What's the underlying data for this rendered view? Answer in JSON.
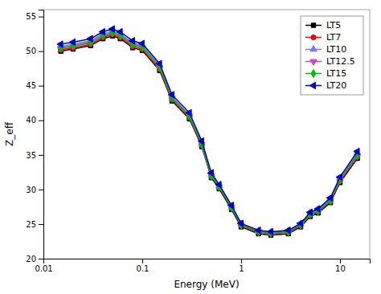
{
  "chart_data": {
    "type": "line",
    "xlabel": "Energy (MeV)",
    "ylabel": "Z_eff",
    "log": "x",
    "grid": false,
    "legend": "upper right",
    "xlim": [
      0.01,
      20
    ],
    "ylim": [
      20,
      56
    ],
    "xticks": [
      0.01,
      0.1,
      1,
      10
    ],
    "yticks": [
      20,
      25,
      30,
      35,
      40,
      45,
      50,
      55
    ],
    "x": [
      0.015,
      0.02,
      0.03,
      0.04,
      0.05,
      0.06,
      0.08,
      0.1,
      0.15,
      0.2,
      0.3,
      0.4,
      0.5,
      0.6,
      0.8,
      1.0,
      1.5,
      2.0,
      3.0,
      4.0,
      5.0,
      6.0,
      8.0,
      10.0,
      15.0
    ],
    "series": [
      {
        "name": "LT5",
        "color": "#000000",
        "marker": "square",
        "values": [
          50.0,
          50.3,
          50.8,
          51.8,
          52.2,
          51.8,
          50.5,
          50.1,
          47.2,
          42.8,
          40.2,
          36.2,
          31.7,
          30.1,
          27.1,
          24.6,
          23.6,
          23.4,
          23.6,
          24.6,
          26.1,
          26.6,
          28.1,
          31.0,
          34.5
        ]
      },
      {
        "name": "LT7",
        "color": "#ff0000",
        "marker": "circle",
        "values": [
          50.2,
          50.5,
          51.0,
          52.0,
          52.4,
          52.0,
          50.7,
          50.3,
          47.4,
          43.0,
          40.4,
          36.4,
          31.9,
          30.3,
          27.3,
          24.8,
          23.8,
          23.6,
          23.8,
          24.8,
          26.3,
          26.8,
          28.3,
          31.2,
          34.7
        ]
      },
      {
        "name": "LT10",
        "color": "#7777ff",
        "marker": "triangle-up",
        "values": [
          50.7,
          51.0,
          51.5,
          52.5,
          52.9,
          52.5,
          51.2,
          50.8,
          47.9,
          43.4,
          40.8,
          36.7,
          32.2,
          30.5,
          27.5,
          25.0,
          24.0,
          23.8,
          24.0,
          25.0,
          26.6,
          27.1,
          28.6,
          31.6,
          35.2
        ]
      },
      {
        "name": "LT12.5",
        "color": "#cc44cc",
        "marker": "triangle-down",
        "values": [
          50.4,
          50.7,
          51.2,
          52.2,
          52.6,
          52.2,
          50.9,
          50.5,
          47.6,
          43.2,
          40.6,
          36.5,
          32.0,
          30.4,
          27.4,
          24.9,
          23.9,
          23.7,
          23.9,
          24.9,
          26.4,
          26.9,
          28.4,
          31.4,
          34.9
        ]
      },
      {
        "name": "LT15",
        "color": "#00bb00",
        "marker": "diamond",
        "values": [
          50.5,
          50.8,
          51.3,
          52.3,
          52.7,
          52.3,
          51.0,
          50.6,
          47.7,
          43.2,
          40.6,
          36.5,
          32.0,
          30.4,
          27.4,
          24.9,
          23.9,
          23.7,
          23.9,
          24.9,
          26.4,
          26.9,
          28.4,
          31.4,
          35.0
        ]
      },
      {
        "name": "LT20",
        "color": "#0000cc",
        "marker": "triangle-left",
        "values": [
          51.0,
          51.3,
          51.8,
          52.8,
          53.2,
          52.8,
          51.5,
          51.1,
          48.2,
          43.7,
          41.1,
          37.0,
          32.4,
          30.7,
          27.7,
          25.1,
          24.1,
          23.9,
          24.1,
          25.1,
          26.7,
          27.2,
          28.8,
          31.8,
          35.5
        ]
      }
    ]
  }
}
